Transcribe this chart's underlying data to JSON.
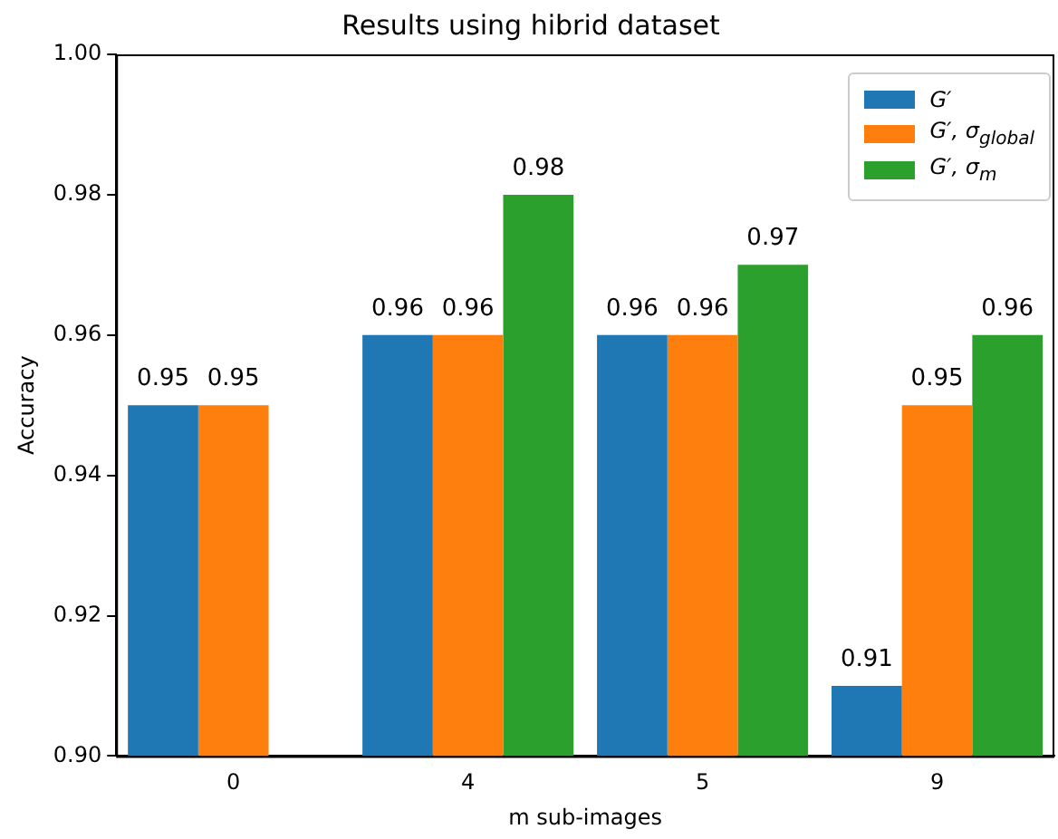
{
  "chart_data": {
    "type": "bar",
    "title": "Results using hibrid dataset",
    "xlabel": "m sub-images",
    "ylabel": "Accuracy",
    "categories": [
      "0",
      "4",
      "5",
      "9"
    ],
    "series": [
      {
        "name": "G′",
        "color": "#1f77b4",
        "values": [
          0.95,
          0.96,
          0.96,
          0.91
        ]
      },
      {
        "name": "G′, σ$_{global}$",
        "color": "#ff7f0e",
        "values": [
          0.95,
          0.96,
          0.96,
          0.95
        ]
      },
      {
        "name": "G′, σ$_{m}$",
        "color": "#2ca02c",
        "values": [
          null,
          0.98,
          0.97,
          0.96
        ]
      }
    ],
    "ylim": [
      0.9,
      1.0
    ],
    "yticks": [
      {
        "value": 0.9,
        "label": "0.90"
      },
      {
        "value": 0.92,
        "label": "0.92"
      },
      {
        "value": 0.94,
        "label": "0.94"
      },
      {
        "value": 0.96,
        "label": "0.96"
      },
      {
        "value": 0.98,
        "label": "0.98"
      },
      {
        "value": 1.0,
        "label": "1.00"
      }
    ],
    "data_labels": true,
    "grid": false,
    "legend": "top right"
  }
}
